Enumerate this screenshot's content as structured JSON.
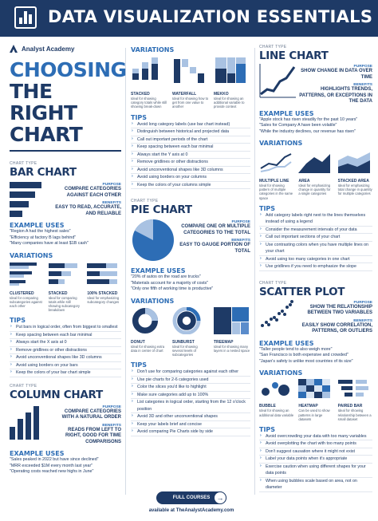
{
  "header": {
    "title": "DATA VISUALIZATION ESSENTIALS"
  },
  "brand": {
    "name": "Analyst Academy"
  },
  "hero": {
    "line1": "CHOOSING",
    "line2": "THE RIGHT",
    "line3": "CHART"
  },
  "labels": {
    "chart_type": "CHART TYPE",
    "purpose": "PURPOSE",
    "benefits": "BENEFITS",
    "example_uses": "EXAMPLE USES",
    "variations": "VARIATIONS",
    "tips": "TIPS"
  },
  "bar_chart": {
    "title": "BAR CHART",
    "purpose": "COMPARE CATEGORIES AGAINST EACH OTHER",
    "benefits": "EASY TO READ, ACCURATE, AND RELIABLE",
    "examples": [
      "\"Region A had the highest sales\"",
      "\"Efficiency at factory B lags behind\"",
      "\"Many companies have at least $1B cash\""
    ],
    "variations": [
      {
        "name": "CLUSTERED",
        "desc": "Ideal for comparing subcategories against each other"
      },
      {
        "name": "STACKED",
        "desc": "Ideal for comparing totals while still showing subcategory breakdown"
      },
      {
        "name": "100% STACKED",
        "desc": "Ideal for emphasizing subcategory changes"
      }
    ],
    "tips": [
      "Put bars in logical order, often from biggest to smallest",
      "Keep spacing between each bar minimal",
      "Always start the X axis at 0",
      "Remove gridlines or other distractions",
      "Avoid unconventional shapes like 3D columns",
      "Avoid using borders on your bars",
      "Keep the colors of your bar chart simple"
    ]
  },
  "column_chart": {
    "title": "COLUMN CHART",
    "purpose": "COMPARE CATEGORIES WITH A NATURAL ORDER",
    "benefits": "READS FROM LEFT TO RIGHT, GOOD FOR TIME COMPARISONS",
    "examples": [
      "\"Sales peaked in 2022 but have since declined\"",
      "\"MRR exceeded $1M every month last year\"",
      "\"Operating costs reached new highs in June\""
    ]
  },
  "variations_top": [
    {
      "name": "STACKED",
      "desc": "Ideal for showing category totals while still showing break-down"
    },
    {
      "name": "WATERFALL",
      "desc": "Ideal for showing how to get from one value to another"
    },
    {
      "name": "MEKKO",
      "desc": "Ideal for showing an additional variable to provide context"
    }
  ],
  "tips_top": [
    "Avoid long category labels (use bar chart instead)",
    "Distinguish between historical and projected data",
    "Call out important periods of the chart",
    "Keep spacing between each bar minimal",
    "Always start the Y axis at 0",
    "Remove gridlines or other distractions",
    "Avoid unconventional shapes like 3D columns",
    "Avoid using borders on your columns",
    "Keep the colors of your columns simple"
  ],
  "pie_chart": {
    "title": "PIE CHART",
    "purpose": "COMPARE ONE OR MULTIPLE CATEGORIES TO THE TOTAL",
    "benefits": "EASY TO GAUGE PORTION OF TOTAL",
    "examples": [
      "\"20% of autos on the road are trucks\"",
      "\"Materials account for a majority of costs\"",
      "\"Only one fifth of working time is productive\""
    ],
    "variations": [
      {
        "name": "DONUT",
        "desc": "Ideal for showing extra data in center of chart"
      },
      {
        "name": "SUNBURST",
        "desc": "Ideal for showing several levels of subcategories"
      },
      {
        "name": "TREEMAP",
        "desc": "Ideal for showing many layers in a nested space"
      }
    ],
    "tips": [
      "Don't use for comparing categories against each other",
      "Use pie charts for 2-6 categories used",
      "Color the slices you'd like to highlight",
      "Make sure categories add up to 100%",
      "List categories in logical order, starting from the 12 o'clock position",
      "Avoid 3D and other unconventional shapes",
      "Keep your labels brief and concise",
      "Avoid comparing Pie Charts side by side"
    ]
  },
  "line_chart": {
    "title": "LINE CHART",
    "purpose": "SHOW CHANGE IN DATA OVER TIME",
    "benefits": "HIGHLIGHTS TRENDS, PATTERNS, OR EXCEPTIONS IN THE DATA",
    "examples": [
      "\"Apple stock has risen steadily for the past 10 years\"",
      "\"Sales for Company A have been volatile\"",
      "\"While the industry declines, our revenue has risen\""
    ],
    "variations": [
      {
        "name": "MULTIPLE LINE",
        "desc": "Ideal for showing pattern of multiple categories in the same space"
      },
      {
        "name": "AREA",
        "desc": "Ideal for emphasizing change in quantity for a single categories"
      },
      {
        "name": "STACKED AREA",
        "desc": "Ideal for emphasizing total change in quantity for multiple categories"
      }
    ],
    "tips": [
      "Add category labels right next to the lines themselves instead of using a legend",
      "Consider the measurement intervals of your data",
      "Call out important sections of your chart",
      "Use contrasting colors when you have multiple lines on your chart",
      "Avoid using too many categories in one chart",
      "Use gridlines if you need to emphasize the slope"
    ]
  },
  "scatter_plot": {
    "title": "SCATTER PLOT",
    "purpose": "SHOW THE RELATIONSHIP BETWEEN TWO VARIABLES",
    "benefits": "EASILY SHOW CORRELATION, PATTERNS, OR OUTLIERS",
    "examples": [
      "\"Taller people tend to also weigh more\"",
      "\"San Francisco is both expensive and crowded\"",
      "\"Japan's safety is unlike most countries of its size\""
    ],
    "variations": [
      {
        "name": "BUBBLE",
        "desc": "Ideal for showing an additional data variable"
      },
      {
        "name": "HEATMAP",
        "desc": "Can be used to show patterns in large datasets"
      },
      {
        "name": "PAIRED BAR",
        "desc": "Ideal for showing relationship between a small dataset"
      }
    ],
    "tips": [
      "Avoid overcrowding your data with too many variables",
      "Avoid overplotting the chart with too many points",
      "Don't suggest causation where it might not exist",
      "Label your data points when it's appropriate",
      "Exercise caution when using different shapes for your data points",
      "When using bubbles scale based on area, not on diameter"
    ]
  },
  "footer": {
    "cta": "FULL COURSES",
    "site": "available at TheAnalystAcademy.com"
  },
  "colors": {
    "navy": "#1e3a66",
    "blue": "#2d6db5",
    "light": "#a9c2e2"
  }
}
